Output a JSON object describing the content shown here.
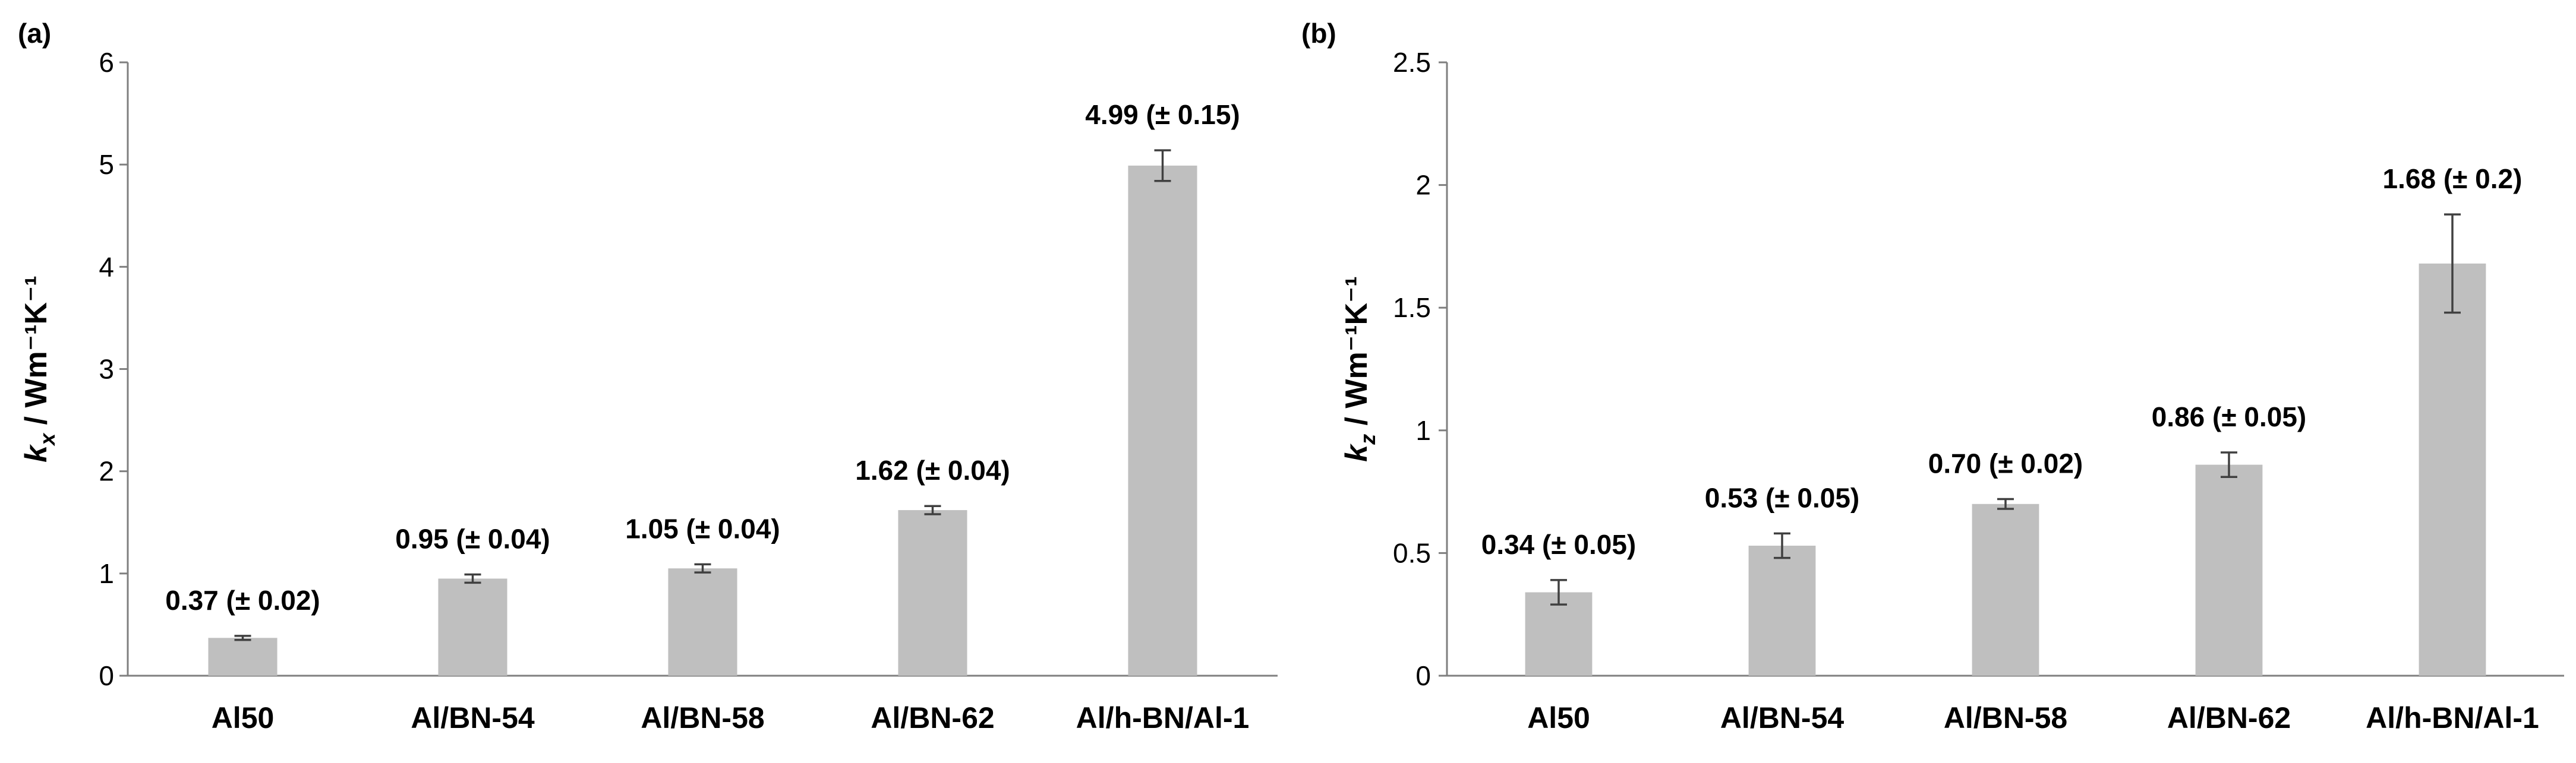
{
  "chart_data": [
    {
      "panel_label": "(a)",
      "type": "bar",
      "categories": [
        "Al50",
        "Al/BN-54",
        "Al/BN-58",
        "Al/BN-62",
        "Al/h-BN/Al-1"
      ],
      "values": [
        0.37,
        0.95,
        1.05,
        1.62,
        4.99
      ],
      "errors": [
        0.02,
        0.04,
        0.04,
        0.04,
        0.15
      ],
      "data_labels": [
        "0.37 (± 0.02)",
        "0.95 (± 0.04)",
        "1.05 (± 0.04)",
        "1.62 (± 0.04)",
        "4.99 (± 0.15)"
      ],
      "ylabel": "kₓ / Wm⁻¹K⁻¹",
      "ylim": [
        0,
        6
      ],
      "yticks": [
        0,
        1,
        2,
        3,
        4,
        5,
        6
      ],
      "ytick_labels": [
        "0",
        "1",
        "2",
        "3",
        "4",
        "5",
        "6"
      ],
      "grid": false,
      "bar_color": "#bfbfbf",
      "error_color": "#404040"
    },
    {
      "panel_label": "(b)",
      "type": "bar",
      "categories": [
        "Al50",
        "Al/BN-54",
        "Al/BN-58",
        "Al/BN-62",
        "Al/h-BN/Al-1"
      ],
      "values": [
        0.34,
        0.53,
        0.7,
        0.86,
        1.68
      ],
      "errors": [
        0.05,
        0.05,
        0.02,
        0.05,
        0.2
      ],
      "data_labels": [
        "0.34 (± 0.05)",
        "0.53 (± 0.05)",
        "0.70 (± 0.02)",
        "0.86 (± 0.05)",
        "1.68 (± 0.2)"
      ],
      "ylabel": "k_z / Wm⁻¹K⁻¹",
      "ylim": [
        0,
        2.5
      ],
      "yticks": [
        0,
        0.5,
        1,
        1.5,
        2,
        2.5
      ],
      "ytick_labels": [
        "0",
        "0.5",
        "1",
        "1.5",
        "2",
        "2.5"
      ],
      "grid": false,
      "bar_color": "#bfbfbf",
      "error_color": "#404040"
    }
  ]
}
